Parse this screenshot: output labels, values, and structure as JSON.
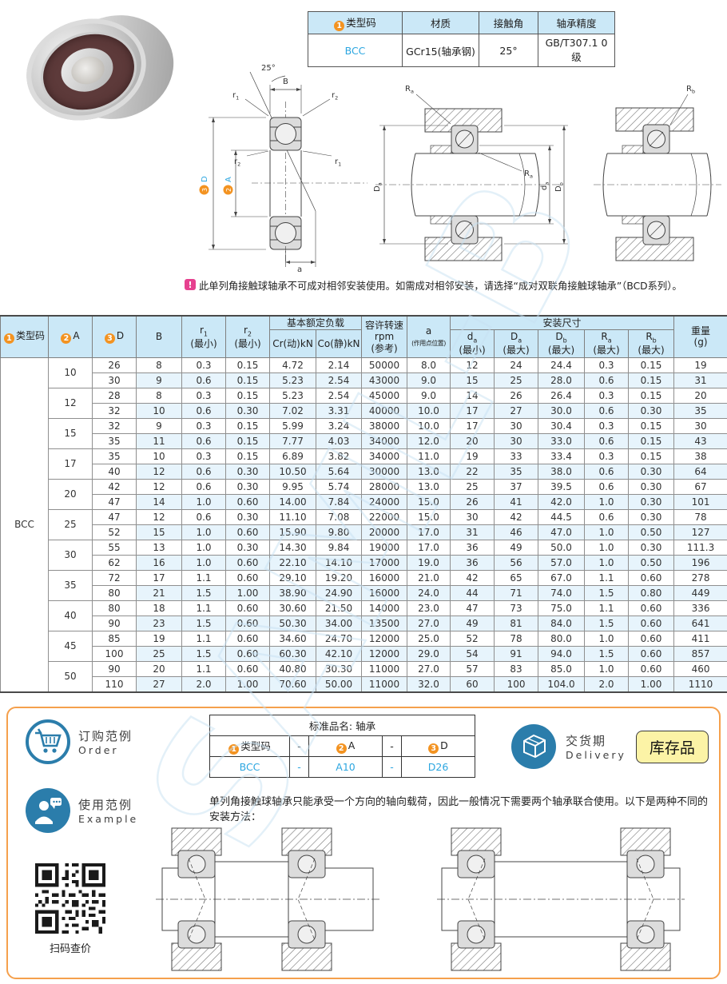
{
  "watermark": "SAML-B",
  "spec_table": {
    "type_num": "1",
    "type_header": "类型码",
    "headers": [
      "材质",
      "接触角",
      "轴承精度"
    ],
    "type_value": "BCC",
    "values": [
      "GCr15(轴承钢)",
      "25°",
      "GB/T307.1 0级"
    ]
  },
  "note": "此单列角接触球轴承不可成对相邻安装使用。如需成对相邻安装，请选择“成对双联角接触球轴承”（BCD系列）。",
  "note_icon": "!",
  "diagram_labels": {
    "angle": "25°",
    "B": "B",
    "r": "r",
    "sub1": "1",
    "sub2": "2",
    "num2": "2",
    "num3": "3",
    "A": "A",
    "D": "D",
    "a": "a",
    "R": "R",
    "d": "d",
    "D2": "D",
    "suba": "a",
    "subb": "b"
  },
  "main_table": {
    "h": {
      "type_num": "1",
      "type_label": "类型码",
      "A_num": "2",
      "A_label": "A",
      "D_num": "3",
      "D_label": "D",
      "B": "B",
      "r": "r",
      "one": "1",
      "two": "2",
      "min": "(最小)",
      "max": "(最大)",
      "load_group": "基本额定负载",
      "cr": "Cr(动)kN",
      "co": "Co(静)kN",
      "speed1": "容许转速",
      "speed2": "rpm",
      "speed3": "(参考)",
      "a": "a",
      "a_note": "(作用点位置)",
      "mount_group": "安装尺寸",
      "d": "d",
      "Dcap": "D",
      "R": "R",
      "suba": "a",
      "subb": "b",
      "weight1": "重量",
      "weight2": "(g)"
    },
    "type_code": "BCC",
    "groups": [
      {
        "A": "10",
        "rows": [
          {
            "D": "26",
            "values": [
              "8",
              "0.3",
              "0.15",
              "4.72",
              "2.14",
              "50000",
              "8.0",
              "12",
              "24",
              "24.4",
              "0.3",
              "0.15",
              "19"
            ]
          },
          {
            "D": "30",
            "values": [
              "9",
              "0.6",
              "0.15",
              "5.23",
              "2.54",
              "43000",
              "9.0",
              "15",
              "25",
              "28.0",
              "0.6",
              "0.15",
              "31"
            ]
          }
        ]
      },
      {
        "A": "12",
        "rows": [
          {
            "D": "28",
            "values": [
              "8",
              "0.3",
              "0.15",
              "5.23",
              "2.54",
              "45000",
              "9.0",
              "14",
              "26",
              "26.4",
              "0.3",
              "0.15",
              "20"
            ]
          },
          {
            "D": "32",
            "values": [
              "10",
              "0.6",
              "0.30",
              "7.02",
              "3.31",
              "40000",
              "10.0",
              "17",
              "27",
              "30.0",
              "0.6",
              "0.30",
              "35"
            ]
          }
        ]
      },
      {
        "A": "15",
        "rows": [
          {
            "D": "32",
            "values": [
              "9",
              "0.3",
              "0.15",
              "5.99",
              "3.24",
              "38000",
              "10.0",
              "17",
              "30",
              "30.4",
              "0.3",
              "0.15",
              "30"
            ]
          },
          {
            "D": "35",
            "values": [
              "11",
              "0.6",
              "0.15",
              "7.77",
              "4.03",
              "34000",
              "12.0",
              "20",
              "30",
              "33.0",
              "0.6",
              "0.15",
              "43"
            ]
          }
        ]
      },
      {
        "A": "17",
        "rows": [
          {
            "D": "35",
            "values": [
              "10",
              "0.3",
              "0.15",
              "6.89",
              "3.82",
              "34000",
              "11.0",
              "19",
              "33",
              "33.4",
              "0.3",
              "0.15",
              "38"
            ]
          },
          {
            "D": "40",
            "values": [
              "12",
              "0.6",
              "0.30",
              "10.50",
              "5.64",
              "30000",
              "13.0",
              "22",
              "35",
              "38.0",
              "0.6",
              "0.30",
              "64"
            ]
          }
        ]
      },
      {
        "A": "20",
        "rows": [
          {
            "D": "42",
            "values": [
              "12",
              "0.6",
              "0.30",
              "9.95",
              "5.74",
              "28000",
              "13.0",
              "25",
              "37",
              "39.5",
              "0.6",
              "0.30",
              "67"
            ]
          },
          {
            "D": "47",
            "values": [
              "14",
              "1.0",
              "0.60",
              "14.00",
              "7.84",
              "24000",
              "15.0",
              "26",
              "41",
              "42.0",
              "1.0",
              "0.30",
              "101"
            ]
          }
        ]
      },
      {
        "A": "25",
        "rows": [
          {
            "D": "47",
            "values": [
              "12",
              "0.6",
              "0.30",
              "11.10",
              "7.08",
              "22000",
              "15.0",
              "30",
              "42",
              "44.5",
              "0.6",
              "0.30",
              "78"
            ]
          },
          {
            "D": "52",
            "values": [
              "15",
              "1.0",
              "0.60",
              "15.90",
              "9.80",
              "20000",
              "17.0",
              "31",
              "46",
              "47.0",
              "1.0",
              "0.50",
              "127"
            ]
          }
        ]
      },
      {
        "A": "30",
        "rows": [
          {
            "D": "55",
            "values": [
              "13",
              "1.0",
              "0.30",
              "14.30",
              "9.84",
              "19000",
              "17.0",
              "36",
              "49",
              "50.0",
              "1.0",
              "0.30",
              "111.3"
            ]
          },
          {
            "D": "62",
            "values": [
              "16",
              "1.0",
              "0.60",
              "22.10",
              "14.10",
              "17000",
              "19.0",
              "36",
              "56",
              "57.0",
              "1.0",
              "0.50",
              "196"
            ]
          }
        ]
      },
      {
        "A": "35",
        "rows": [
          {
            "D": "72",
            "values": [
              "17",
              "1.1",
              "0.60",
              "29.10",
              "19.20",
              "16000",
              "21.0",
              "42",
              "65",
              "67.0",
              "1.1",
              "0.60",
              "278"
            ]
          },
          {
            "D": "80",
            "values": [
              "21",
              "1.5",
              "1.00",
              "38.90",
              "24.90",
              "16000",
              "24.0",
              "44",
              "71",
              "74.0",
              "1.5",
              "0.80",
              "449"
            ]
          }
        ]
      },
      {
        "A": "40",
        "rows": [
          {
            "D": "80",
            "values": [
              "18",
              "1.1",
              "0.60",
              "30.60",
              "21.50",
              "14000",
              "23.0",
              "47",
              "73",
              "75.0",
              "1.1",
              "0.60",
              "336"
            ]
          },
          {
            "D": "90",
            "values": [
              "23",
              "1.5",
              "0.60",
              "50.30",
              "34.00",
              "13500",
              "27.0",
              "49",
              "81",
              "84.0",
              "1.5",
              "0.60",
              "641"
            ]
          }
        ]
      },
      {
        "A": "45",
        "rows": [
          {
            "D": "85",
            "values": [
              "19",
              "1.1",
              "0.60",
              "34.60",
              "24.70",
              "12000",
              "25.0",
              "52",
              "78",
              "80.0",
              "1.0",
              "0.60",
              "411"
            ]
          },
          {
            "D": "100",
            "values": [
              "25",
              "1.5",
              "0.60",
              "60.30",
              "42.10",
              "12000",
              "29.0",
              "54",
              "91",
              "94.0",
              "1.5",
              "0.60",
              "857"
            ]
          }
        ]
      },
      {
        "A": "50",
        "rows": [
          {
            "D": "90",
            "values": [
              "20",
              "1.1",
              "0.60",
              "40.80",
              "30.30",
              "11000",
              "27.0",
              "57",
              "83",
              "85.0",
              "1.0",
              "0.60",
              "460"
            ]
          },
          {
            "D": "110",
            "values": [
              "27",
              "2.0",
              "1.00",
              "70.60",
              "50.00",
              "11000",
              "32.0",
              "60",
              "100",
              "104.0",
              "2.0",
              "1.00",
              "1110"
            ]
          }
        ]
      }
    ]
  },
  "order": {
    "title_cn": "订购范例",
    "title_en": "Order",
    "table_title": "标准品名: 轴承",
    "h0_num": "1",
    "h0": "类型码",
    "h1": "-",
    "h2_num": "2",
    "h2": "A",
    "h3": "-",
    "h4_num": "3",
    "h4": "D",
    "v0": "BCC",
    "v1": "-",
    "v2": "A10",
    "v3": "-",
    "v4": "D26"
  },
  "delivery": {
    "title_cn": "交货期",
    "title_en": "Delivery",
    "badge": "库存品"
  },
  "example": {
    "title_cn": "使用范例",
    "title_en": "Example",
    "text": "单列角接触球轴承只能承受一个方向的轴向载荷，因此一般情况下需要两个轴承联合使用。以下是两种不同的安装方法："
  },
  "qr": {
    "caption": "扫码查价"
  }
}
